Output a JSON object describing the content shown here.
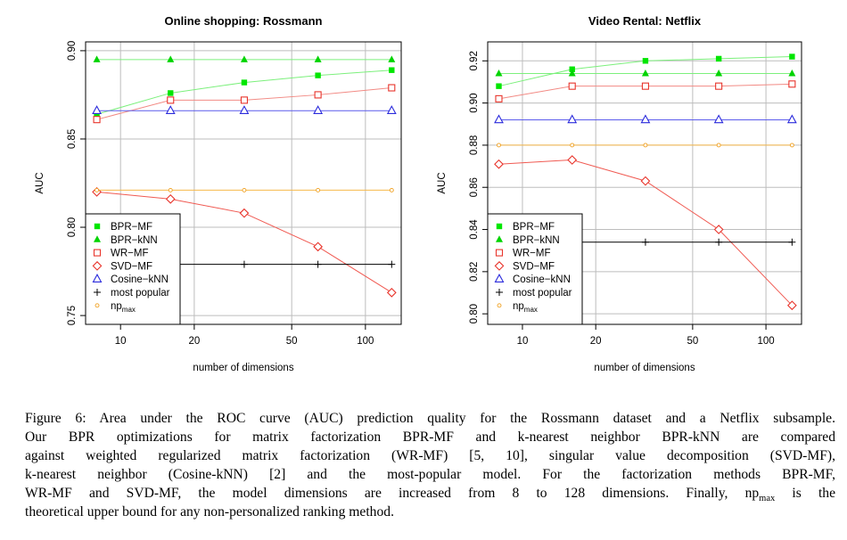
{
  "colors": {
    "bpr_mf": "#00e600",
    "bpr_knn": "#00d400",
    "wr_mf": "#e8342b",
    "svd_mf": "#e8342b",
    "cosine_knn": "#2b2bdc",
    "most_popular": "#000000",
    "np_max": "#f0a020",
    "grid": "#bdbdbd"
  },
  "legend": {
    "bpr_mf": "BPR−MF",
    "bpr_knn": "BPR−kNN",
    "wr_mf": "WR−MF",
    "svd_mf": "SVD−MF",
    "cosine_knn": "Cosine−kNN",
    "most_popular": "most popular",
    "np_max_base": "np",
    "np_max_sub": "max"
  },
  "chart_data": [
    {
      "type": "line",
      "title": "Online shopping: Rossmann",
      "xlabel": "number of dimensions",
      "ylabel": "AUC",
      "x_scale": "log",
      "x": [
        8,
        16,
        32,
        64,
        128
      ],
      "xticks": [
        "10",
        "20",
        "50",
        "100"
      ],
      "xtick_values": [
        10,
        20,
        50,
        100
      ],
      "ylim": [
        0.745,
        0.905
      ],
      "yticks": [
        "0.75",
        "0.80",
        "0.85",
        "0.90"
      ],
      "ytick_values": [
        0.75,
        0.8,
        0.85,
        0.9
      ],
      "grid": true,
      "legend_position": "bottom-left",
      "series": [
        {
          "key": "bpr_mf",
          "name": "BPR−MF",
          "marker": "square-filled",
          "values": [
            0.864,
            0.876,
            0.882,
            0.886,
            0.889
          ]
        },
        {
          "key": "bpr_knn",
          "name": "BPR−kNN",
          "marker": "triangle-filled",
          "values": [
            0.895,
            0.895,
            0.895,
            0.895,
            0.895
          ]
        },
        {
          "key": "wr_mf",
          "name": "WR−MF",
          "marker": "square-open",
          "values": [
            0.861,
            0.872,
            0.872,
            0.875,
            0.879
          ]
        },
        {
          "key": "svd_mf",
          "name": "SVD−MF",
          "marker": "diamond-open",
          "values": [
            0.82,
            0.816,
            0.808,
            0.789,
            0.763
          ]
        },
        {
          "key": "cosine_knn",
          "name": "Cosine−kNN",
          "marker": "triangle-open",
          "values": [
            0.866,
            0.866,
            0.866,
            0.866,
            0.866
          ]
        },
        {
          "key": "most_popular",
          "name": "most popular",
          "marker": "plus",
          "values": [
            0.779,
            0.779,
            0.779,
            0.779,
            0.779
          ]
        },
        {
          "key": "np_max",
          "name": "npmax",
          "marker": "circle-small",
          "values": [
            0.821,
            0.821,
            0.821,
            0.821,
            0.821
          ]
        }
      ]
    },
    {
      "type": "line",
      "title": "Video Rental: Netflix",
      "xlabel": "number of dimensions",
      "ylabel": "AUC",
      "x_scale": "log",
      "x": [
        8,
        16,
        32,
        64,
        128
      ],
      "xticks": [
        "10",
        "20",
        "50",
        "100"
      ],
      "xtick_values": [
        10,
        20,
        50,
        100
      ],
      "ylim": [
        0.795,
        0.929
      ],
      "yticks": [
        "0.80",
        "0.82",
        "0.84",
        "0.86",
        "0.88",
        "0.90",
        "0.92"
      ],
      "ytick_values": [
        0.8,
        0.82,
        0.84,
        0.86,
        0.88,
        0.9,
        0.92
      ],
      "grid": true,
      "legend_position": "bottom-left",
      "series": [
        {
          "key": "bpr_mf",
          "name": "BPR−MF",
          "marker": "square-filled",
          "values": [
            0.908,
            0.916,
            0.92,
            0.921,
            0.922
          ]
        },
        {
          "key": "bpr_knn",
          "name": "BPR−kNN",
          "marker": "triangle-filled",
          "values": [
            0.914,
            0.914,
            0.914,
            0.914,
            0.914
          ]
        },
        {
          "key": "wr_mf",
          "name": "WR−MF",
          "marker": "square-open",
          "values": [
            0.902,
            0.908,
            0.908,
            0.908,
            0.909
          ]
        },
        {
          "key": "svd_mf",
          "name": "SVD−MF",
          "marker": "diamond-open",
          "values": [
            0.871,
            0.873,
            0.863,
            0.84,
            0.804
          ]
        },
        {
          "key": "cosine_knn",
          "name": "Cosine−kNN",
          "marker": "triangle-open",
          "values": [
            0.892,
            0.892,
            0.892,
            0.892,
            0.892
          ]
        },
        {
          "key": "most_popular",
          "name": "most popular",
          "marker": "plus",
          "values": [
            0.834,
            0.834,
            0.834,
            0.834,
            0.834
          ]
        },
        {
          "key": "np_max",
          "name": "npmax",
          "marker": "circle-small",
          "values": [
            0.88,
            0.88,
            0.88,
            0.88,
            0.88
          ]
        }
      ]
    }
  ],
  "caption": {
    "line1": "Figure 6: Area under the ROC curve (AUC) prediction quality for the Rossmann dataset and a Netflix subsample.",
    "line2": "Our BPR optimizations for matrix factorization BPR-MF and k-nearest neighbor BPR-kNN are compared",
    "line3": "against weighted regularized matrix factorization (WR-MF) [5, 10], singular value decomposition (SVD-MF),",
    "line4": "k-nearest neighbor (Cosine-kNN) [2] and the most-popular model.  For the factorization methods BPR-MF,",
    "line5a": "WR-MF and SVD-MF, the model dimensions are increased from 8 to 128 dimensions.  Finally, np",
    "line5sub": "max",
    "line5b": " is the",
    "line6": "theoretical upper bound for any non-personalized ranking method."
  }
}
